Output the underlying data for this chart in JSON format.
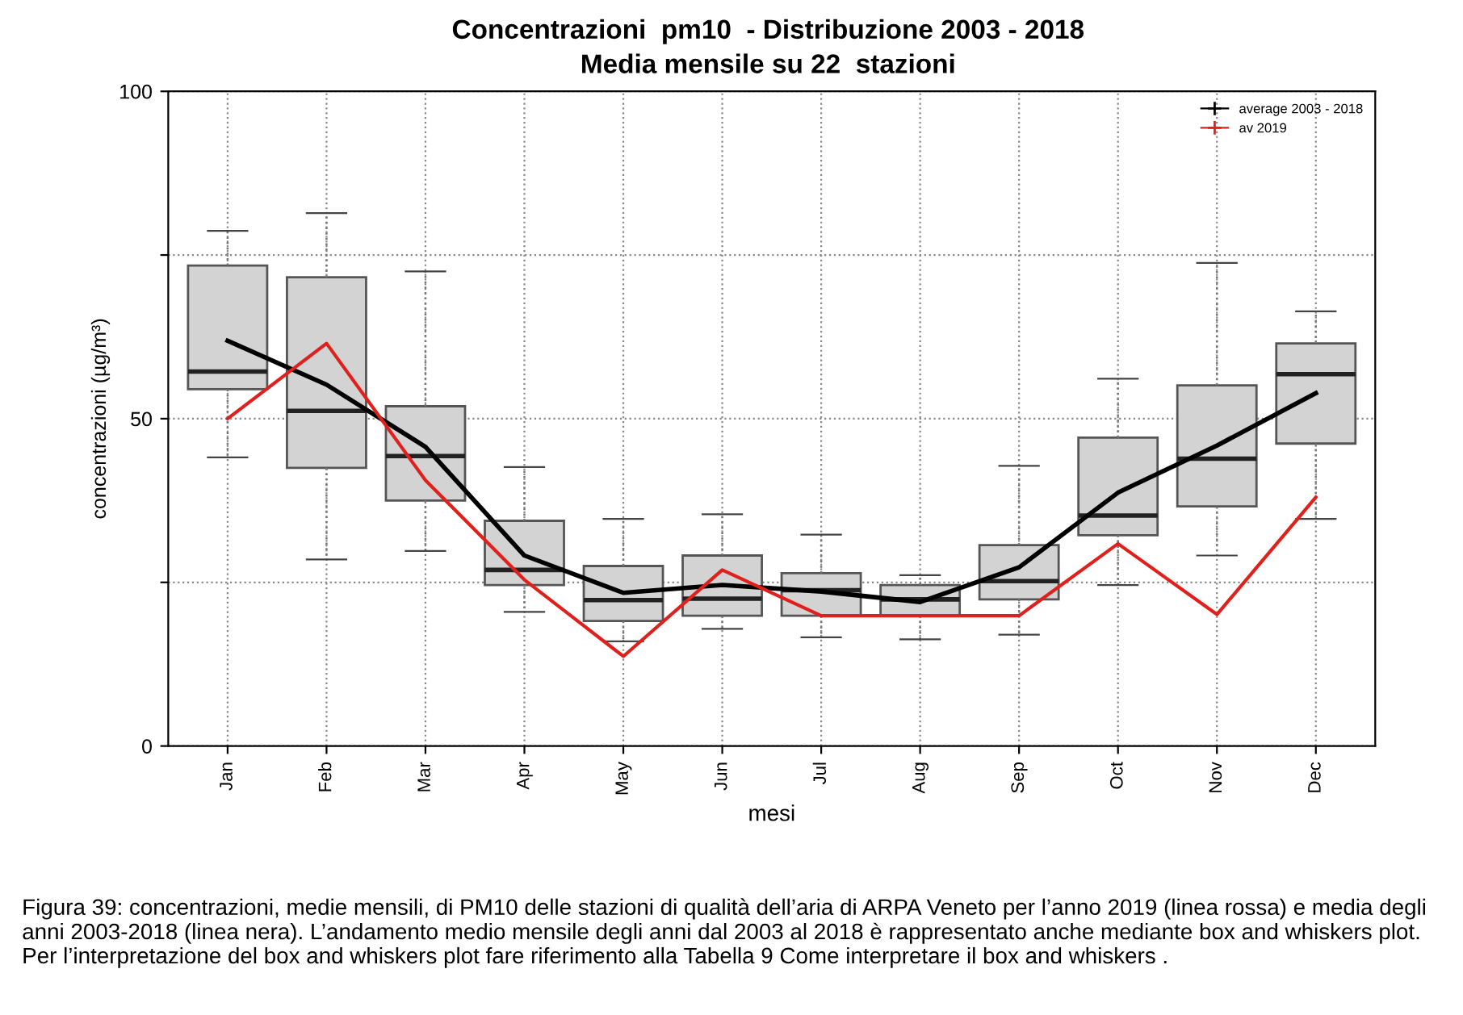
{
  "chart_data": {
    "type": "box",
    "title": "Concentrazioni  pm10  - Distribuzione 2003 - 2018",
    "subtitle": "Media mensile su 22  stazioni",
    "xlabel": "mesi",
    "ylabel": "concentrazioni (µg/m³)",
    "categories": [
      "Jan",
      "Feb",
      "Mar",
      "Apr",
      "May",
      "Jun",
      "Jul",
      "Aug",
      "Sep",
      "Oct",
      "Nov",
      "Dec"
    ],
    "color": "#d3d3d3",
    "boxes": [
      {
        "low": 44.1,
        "q1": 54.5,
        "median": 57.2,
        "q3": 73.4,
        "high": 78.7
      },
      {
        "low": 28.5,
        "q1": 42.5,
        "median": 51.2,
        "q3": 71.6,
        "high": 81.4
      },
      {
        "low": 29.8,
        "q1": 37.5,
        "median": 44.3,
        "q3": 51.9,
        "high": 72.5
      },
      {
        "low": 20.5,
        "q1": 24.6,
        "median": 26.9,
        "q3": 34.4,
        "high": 42.6
      },
      {
        "low": 16.0,
        "q1": 19.1,
        "median": 22.3,
        "q3": 27.5,
        "high": 34.7
      },
      {
        "low": 17.9,
        "q1": 19.9,
        "median": 22.5,
        "q3": 29.1,
        "high": 35.4
      },
      {
        "low": 16.6,
        "q1": 19.9,
        "median": 23.8,
        "q3": 26.4,
        "high": 32.3
      },
      {
        "low": 16.3,
        "q1": 19.9,
        "median": 22.4,
        "q3": 24.6,
        "high": 26.1
      },
      {
        "low": 17.0,
        "q1": 22.4,
        "median": 25.2,
        "q3": 30.7,
        "high": 42.8
      },
      {
        "low": 24.6,
        "q1": 32.2,
        "median": 35.2,
        "q3": 47.1,
        "high": 56.1
      },
      {
        "low": 29.1,
        "q1": 36.6,
        "median": 43.9,
        "q3": 55.1,
        "high": 73.8
      },
      {
        "low": 34.7,
        "q1": 46.2,
        "median": 56.8,
        "q3": 61.5,
        "high": 66.4
      }
    ],
    "series": [
      {
        "type": "line",
        "name": "average 2003 - 2018",
        "color": "#000000",
        "values": [
          61.9,
          55.2,
          45.7,
          29.1,
          23.4,
          24.6,
          23.6,
          22.0,
          27.3,
          38.7,
          45.9,
          53.9
        ]
      },
      {
        "type": "line",
        "name": "av 2019",
        "color": "#e0201c",
        "values": [
          50.0,
          61.5,
          40.6,
          25.4,
          13.7,
          26.9,
          19.9,
          19.9,
          19.9,
          30.9,
          20.1,
          38.0
        ]
      }
    ],
    "ylim": [
      0,
      100
    ],
    "yticks": [
      0,
      {
        "value": 25,
        "label": null
      },
      50,
      {
        "value": 75,
        "label": null
      },
      100
    ],
    "grid": true,
    "legend": "top right",
    "annotations": [
      "Figura 39: concentrazioni, medie mensili, di PM10 delle stazioni di qualità dell’aria di ARPA Veneto per l’anno 2019 (linea rossa) e media degli anni 2003-2018 (linea nera). L’andamento medio mensile degli anni dal 2003 al 2018 è rappresentato anche mediante box and whiskers plot. Per l’interpretazione del box and whiskers plot fare riferimento alla Tabella 9 Come interpretare il box and whiskers ."
    ]
  }
}
